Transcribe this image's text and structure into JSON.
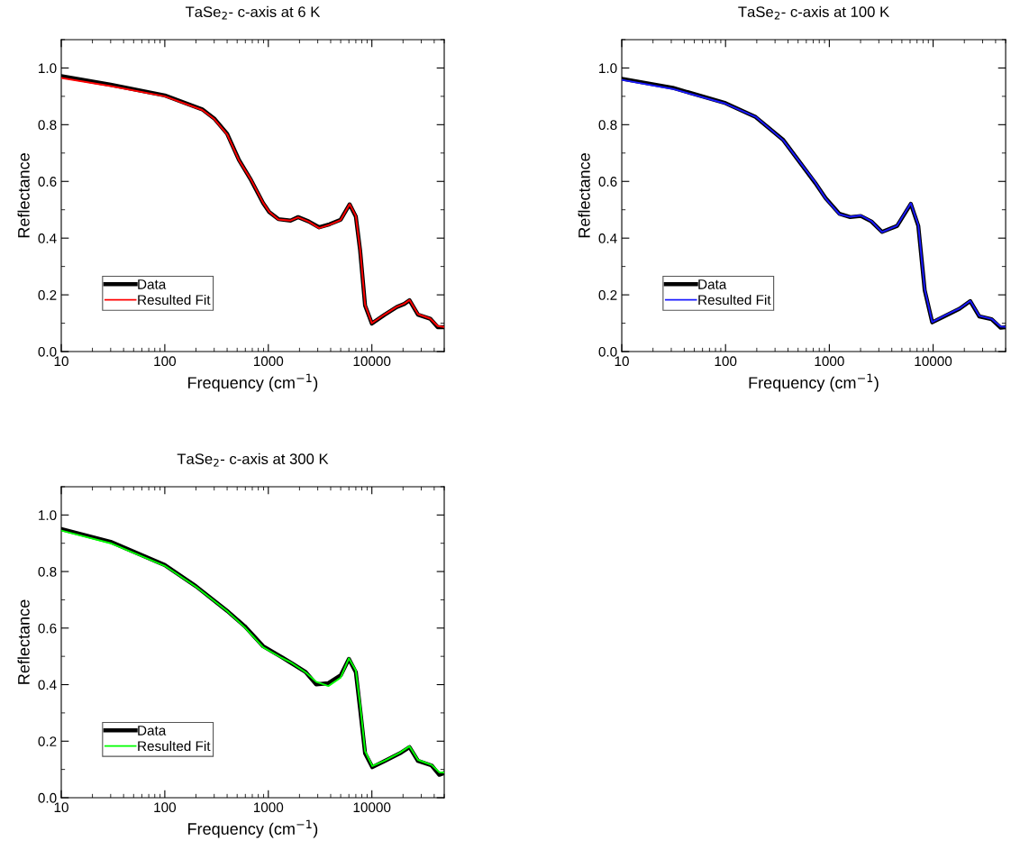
{
  "chart_data": [
    {
      "type": "line",
      "title": "TaSe$_{2}$- c-axis at 6 K",
      "xlabel": "Frequency (cm$^{−1}$)",
      "ylabel": "Reflectance",
      "log": "x",
      "xlim": [
        10,
        50000
      ],
      "ylim": [
        0,
        1.1
      ],
      "xticks": [
        10,
        100,
        1000,
        10000
      ],
      "yticks": [
        {
          "value": 0,
          "label": "0.0"
        },
        {
          "value": 0.2,
          "label": "0.2"
        },
        {
          "value": 0.4,
          "label": "0.4"
        },
        {
          "value": 0.6,
          "label": "0.6"
        },
        {
          "value": 0.8,
          "label": "0.8"
        },
        {
          "value": 1.0,
          "label": "1.0"
        }
      ],
      "legend": "bottom left",
      "grid": false,
      "x": [
        10,
        30,
        100,
        230,
        300,
        400,
        520,
        680,
        890,
        1020,
        1250,
        1640,
        1940,
        2450,
        3100,
        3900,
        5000,
        6100,
        7000,
        7700,
        8600,
        10000,
        13300,
        17400,
        20600,
        23100,
        27900,
        36600,
        43300,
        50000
      ],
      "series": [
        {
          "name": "Data",
          "color": "#000000",
          "values": [
            0.971,
            0.941,
            0.903,
            0.854,
            0.822,
            0.768,
            0.676,
            0.605,
            0.524,
            0.492,
            0.467,
            0.462,
            0.474,
            0.459,
            0.438,
            0.449,
            0.465,
            0.519,
            0.476,
            0.357,
            0.162,
            0.099,
            0.13,
            0.157,
            0.168,
            0.181,
            0.13,
            0.116,
            0.086,
            0.086
          ]
        },
        {
          "name": "Resulted Fit",
          "color": "#ff0000",
          "values": [
            0.965,
            0.936,
            0.9,
            0.852,
            0.82,
            0.766,
            0.675,
            0.606,
            0.525,
            0.493,
            0.466,
            0.462,
            0.473,
            0.458,
            0.435,
            0.447,
            0.464,
            0.52,
            0.478,
            0.36,
            0.165,
            0.1,
            0.131,
            0.158,
            0.169,
            0.182,
            0.132,
            0.116,
            0.09,
            0.087
          ]
        }
      ]
    },
    {
      "type": "line",
      "title": "TaSe$_{2}$- c-axis at 100 K",
      "xlabel": "Frequency (cm$^{−1}$)",
      "ylabel": "Reflectance",
      "log": "x",
      "xlim": [
        10,
        50000
      ],
      "ylim": [
        0,
        1.1
      ],
      "xticks": [
        10,
        100,
        1000,
        10000
      ],
      "yticks": [
        {
          "value": 0,
          "label": "0.0"
        },
        {
          "value": 0.2,
          "label": "0.2"
        },
        {
          "value": 0.4,
          "label": "0.4"
        },
        {
          "value": 0.6,
          "label": "0.6"
        },
        {
          "value": 0.8,
          "label": "0.8"
        },
        {
          "value": 1.0,
          "label": "1.0"
        }
      ],
      "legend": "bottom left",
      "grid": false,
      "x": [
        10,
        31,
        100,
        195,
        360,
        540,
        730,
        920,
        1250,
        1590,
        2010,
        2540,
        3220,
        4500,
        6100,
        7200,
        8300,
        9800,
        12800,
        18000,
        22800,
        27900,
        36600,
        44800,
        50000
      ],
      "series": [
        {
          "name": "Data",
          "color": "#000000",
          "values": [
            0.962,
            0.93,
            0.876,
            0.827,
            0.746,
            0.659,
            0.595,
            0.541,
            0.486,
            0.474,
            0.478,
            0.459,
            0.422,
            0.443,
            0.521,
            0.443,
            0.216,
            0.103,
            0.124,
            0.151,
            0.178,
            0.124,
            0.114,
            0.084,
            0.086
          ]
        },
        {
          "name": "Resulted Fit",
          "color": "#1a1aff",
          "values": [
            0.958,
            0.926,
            0.874,
            0.828,
            0.745,
            0.66,
            0.597,
            0.54,
            0.484,
            0.475,
            0.48,
            0.46,
            0.421,
            0.444,
            0.523,
            0.446,
            0.22,
            0.104,
            0.126,
            0.152,
            0.179,
            0.126,
            0.115,
            0.088,
            0.087
          ]
        }
      ]
    },
    {
      "type": "line",
      "title": "TaSe$_{2}$- c-axis at 300 K",
      "xlabel": "Frequency (cm$^{−1}$)",
      "ylabel": "Reflectance",
      "log": "x",
      "xlim": [
        10,
        50000
      ],
      "ylim": [
        0,
        1.1
      ],
      "xticks": [
        10,
        100,
        1000,
        10000
      ],
      "yticks": [
        {
          "value": 0,
          "label": "0.0"
        },
        {
          "value": 0.2,
          "label": "0.2"
        },
        {
          "value": 0.4,
          "label": "0.4"
        },
        {
          "value": 0.6,
          "label": "0.6"
        },
        {
          "value": 0.8,
          "label": "0.8"
        },
        {
          "value": 1.0,
          "label": "1.0"
        }
      ],
      "legend": "bottom left",
      "grid": false,
      "x": [
        10,
        30,
        100,
        200,
        400,
        590,
        890,
        1340,
        1690,
        2300,
        2900,
        3800,
        5000,
        6000,
        7000,
        7700,
        8600,
        10100,
        13300,
        18600,
        23100,
        27900,
        37800,
        44800,
        50000
      ],
      "series": [
        {
          "name": "Data",
          "color": "#000000",
          "values": [
            0.95,
            0.905,
            0.823,
            0.748,
            0.661,
            0.607,
            0.536,
            0.498,
            0.475,
            0.444,
            0.401,
            0.405,
            0.433,
            0.491,
            0.444,
            0.314,
            0.157,
            0.108,
            0.13,
            0.157,
            0.179,
            0.13,
            0.114,
            0.081,
            0.087
          ]
        },
        {
          "name": "Resulted Fit",
          "color": "#00ff00",
          "values": [
            0.945,
            0.9,
            0.82,
            0.746,
            0.66,
            0.603,
            0.532,
            0.495,
            0.476,
            0.443,
            0.41,
            0.395,
            0.425,
            0.493,
            0.45,
            0.33,
            0.165,
            0.112,
            0.131,
            0.159,
            0.182,
            0.134,
            0.116,
            0.09,
            0.089
          ]
        }
      ]
    }
  ]
}
